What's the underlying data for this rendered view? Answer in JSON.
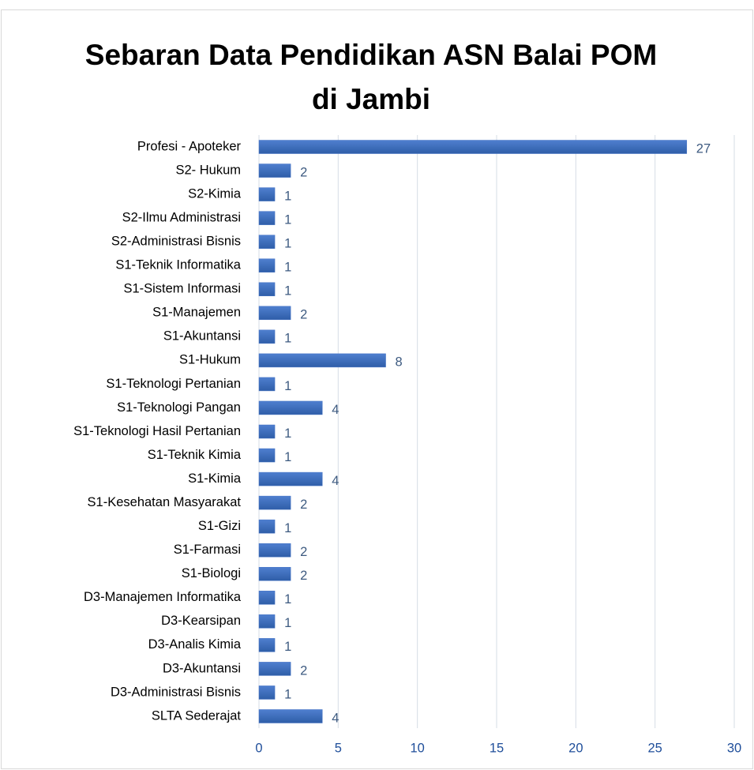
{
  "chart_data": {
    "type": "bar",
    "orientation": "horizontal",
    "title": "Sebaran Data Pendidikan ASN Balai POM di Jambi",
    "categories": [
      "Profesi - Apoteker",
      "S2- Hukum",
      "S2-Kimia",
      "S2-Ilmu Administrasi",
      "S2-Administrasi Bisnis",
      "S1-Teknik Informatika",
      "S1-Sistem Informasi",
      "S1-Manajemen",
      "S1-Akuntansi",
      "S1-Hukum",
      "S1-Teknologi Pertanian",
      "S1-Teknologi Pangan",
      "S1-Teknologi Hasil Pertanian",
      "S1-Teknik Kimia",
      "S1-Kimia",
      "S1-Kesehatan Masyarakat",
      "S1-Gizi",
      "S1-Farmasi",
      "S1-Biologi",
      "D3-Manajemen Informatika",
      "D3-Kearsipan",
      "D3-Analis Kimia",
      "D3-Akuntansi",
      "D3-Administrasi Bisnis",
      "SLTA Sederajat"
    ],
    "values": [
      27,
      2,
      1,
      1,
      1,
      1,
      1,
      2,
      1,
      8,
      1,
      4,
      1,
      1,
      4,
      2,
      1,
      2,
      2,
      1,
      1,
      1,
      2,
      1,
      4
    ],
    "color": "#4472c4",
    "xlim": [
      0,
      30
    ],
    "xticks": [
      0,
      5,
      10,
      15,
      20,
      25,
      30
    ],
    "grid": true
  }
}
